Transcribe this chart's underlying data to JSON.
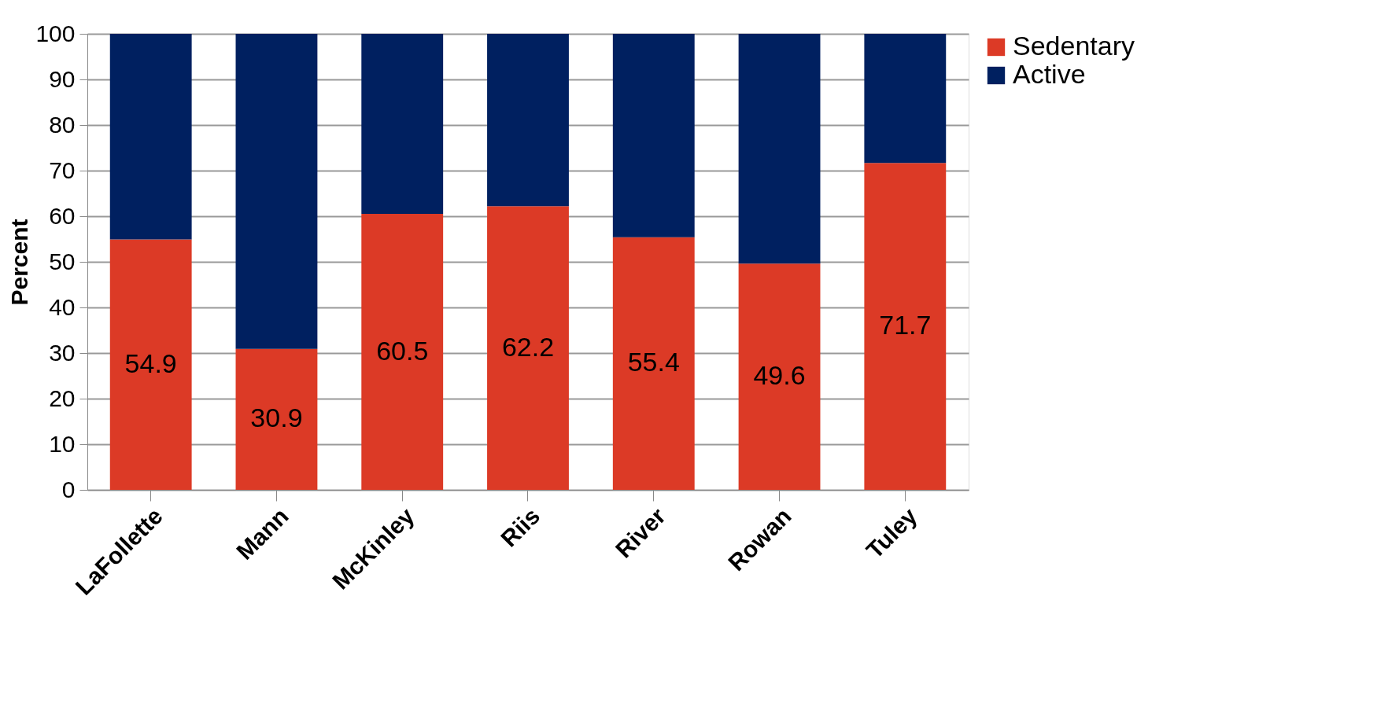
{
  "chart_data": {
    "type": "bar",
    "stacked": true,
    "ylabel": "Percent",
    "categories": [
      "LaFollette",
      "Mann",
      "McKinley",
      "Riis",
      "River",
      "Rowan",
      "Tuley"
    ],
    "series": [
      {
        "name": "Sedentary",
        "color": "#dc3a26",
        "values": [
          54.9,
          30.9,
          60.5,
          62.2,
          55.4,
          49.6,
          71.7
        ],
        "value_labels": [
          "54.9",
          "30.9",
          "60.5",
          "62.2",
          "55.4",
          "49.6",
          "71.7"
        ]
      },
      {
        "name": "Active",
        "color": "#002060",
        "values": [
          45.1,
          69.1,
          39.5,
          37.8,
          44.6,
          50.4,
          28.3
        ]
      }
    ],
    "ylim": [
      0,
      100
    ],
    "yticks": [
      0,
      10,
      20,
      30,
      40,
      50,
      60,
      70,
      80,
      90,
      100
    ],
    "grid": "y",
    "legend": "right"
  }
}
